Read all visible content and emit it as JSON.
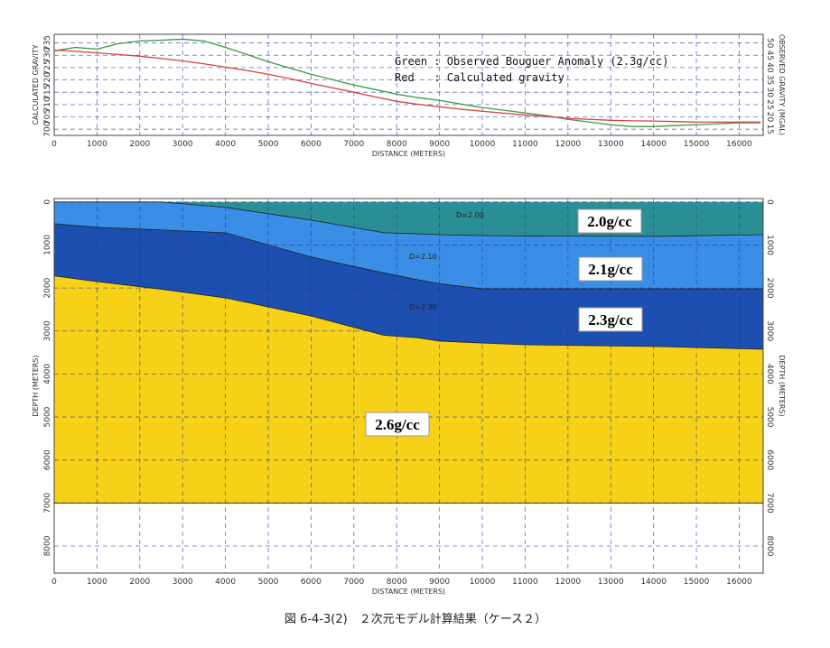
{
  "chart_data": [
    {
      "type": "line",
      "x": [
        0,
        500,
        1000,
        1500,
        2000,
        2500,
        3000,
        3500,
        4000,
        4500,
        5000,
        5500,
        6000,
        6500,
        7000,
        7500,
        8000,
        8500,
        9000,
        9500,
        10000,
        10500,
        11000,
        11500,
        12000,
        12500,
        13000,
        13500,
        14000,
        14500,
        15000,
        15500,
        16000,
        16500
      ],
      "series": [
        {
          "name": "Observed Bouguer Anomaly",
          "color": "#3c9a3c",
          "axis": "y2",
          "values": [
            46.8,
            48.2,
            47.5,
            49.7,
            50.8,
            51.1,
            51.5,
            50.8,
            48.2,
            45.3,
            42.4,
            39.8,
            37.3,
            35.1,
            32.9,
            31.1,
            29.2,
            27.8,
            26.7,
            25.2,
            23.8,
            22.7,
            21.6,
            20.5,
            19.0,
            17.9,
            16.8,
            16.1,
            16.1,
            16.5,
            16.8,
            17.2,
            17.6,
            17.6
          ]
        },
        {
          "name": "Calculated gravity",
          "color": "#d84040",
          "values": [
            732.1,
            731.6,
            731.0,
            730.3,
            729.6,
            728.7,
            727.7,
            726.5,
            725.2,
            723.8,
            722.3,
            720.5,
            718.6,
            716.8,
            715.0,
            713.1,
            711.3,
            710.1,
            709.1,
            708.1,
            707.3,
            706.5,
            705.8,
            705.1,
            704.4,
            704.0,
            703.6,
            703.4,
            703.3,
            703.1,
            702.9,
            702.9,
            702.9,
            702.9
          ]
        }
      ],
      "xlim": [
        0,
        16560
      ],
      "xticks": [
        0,
        1000,
        2000,
        3000,
        4000,
        5000,
        6000,
        7000,
        8000,
        9000,
        10000,
        11000,
        12000,
        13000,
        14000,
        15000,
        16000
      ],
      "ylim": [
        697.5,
        738.5
      ],
      "yticks": [
        700,
        705,
        710,
        715,
        720,
        725,
        730,
        735
      ],
      "y2lim": [
        12.5,
        53.5
      ],
      "y2ticks": [
        15,
        20,
        25,
        30,
        35,
        40,
        45,
        50
      ],
      "xlabel": "DISTANCE (METERS)",
      "ylabel": "CALCULATED GRAVITY",
      "y2label": "OBSERVED GRAVITY (MGAL)",
      "annotations": [
        "Green : Observed Bouguer Anomaly (2.3g/cc)",
        "Red   : Calculated gravity"
      ],
      "grid": true
    },
    {
      "type": "cross-section",
      "x": [
        0,
        1000,
        2000,
        2500,
        4000,
        6000,
        7700,
        8500,
        9000,
        10000,
        11000,
        14000,
        16560
      ],
      "surface": [
        0,
        0,
        0,
        0,
        0,
        0,
        0,
        0,
        0,
        0,
        0,
        0,
        0
      ],
      "layers": [
        {
          "name": "2.0g/cc",
          "label": "D=2.00",
          "color": "#2a8f95",
          "base": [
            0,
            0,
            0,
            0,
            125,
            420,
            715,
            740,
            760,
            780,
            790,
            800,
            760
          ]
        },
        {
          "name": "2.1g/cc",
          "label": "D=2.10",
          "color": "#3a8ee6",
          "base": [
            505,
            590,
            630,
            650,
            715,
            1280,
            1650,
            1810,
            1900,
            2020,
            2020,
            2020,
            2020
          ]
        },
        {
          "name": "2.3g/cc",
          "label": "D=2.30",
          "color": "#1d4fb0",
          "base": [
            1720,
            1850,
            1970,
            2030,
            2230,
            2650,
            3100,
            3160,
            3235,
            3280,
            3320,
            3360,
            3425
          ]
        },
        {
          "name": "2.6g/cc",
          "color": "#f7d117",
          "base": [
            7000,
            7000,
            7000,
            7000,
            7000,
            7000,
            7000,
            7000,
            7000,
            7000,
            7000,
            7000,
            7000
          ]
        }
      ],
      "xlim": [
        0,
        16560
      ],
      "xticks": [
        0,
        1000,
        2000,
        3000,
        4000,
        5000,
        6000,
        7000,
        8000,
        9000,
        10000,
        11000,
        12000,
        13000,
        14000,
        15000,
        16000
      ],
      "ylim": [
        -80,
        8630
      ],
      "yticks": [
        0,
        1000,
        2000,
        3000,
        4000,
        5000,
        6000,
        7000,
        8000
      ],
      "xlabel": "DISTANCE (METERS)",
      "ylabel": "DEPTH (METERS)",
      "grid": true
    }
  ],
  "caption": "図 6-4-3(2)　２次元モデル計算結果（ケース２）"
}
